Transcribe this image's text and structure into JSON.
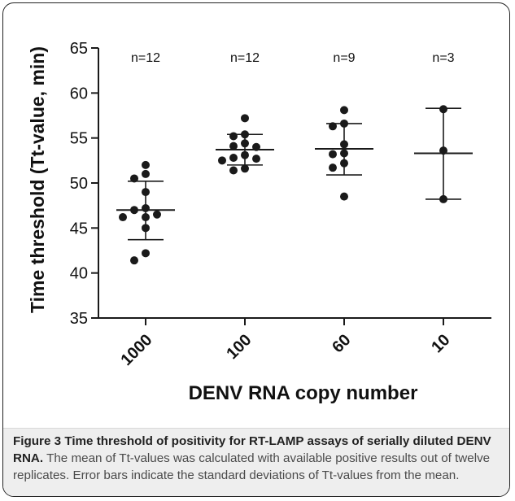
{
  "chart_data": {
    "type": "scatter",
    "title": "",
    "xlabel": "DENV RNA copy number",
    "ylabel": "Time threshold (Tt-value, min)",
    "ylim": [
      35,
      65
    ],
    "yticks": [
      35,
      40,
      45,
      50,
      55,
      60,
      65
    ],
    "categories": [
      "1000",
      "100",
      "60",
      "10"
    ],
    "annotations": [
      "n=12",
      "n=12",
      "n=9",
      "n=3"
    ],
    "groups": [
      {
        "category": "1000",
        "n_label": "n=12",
        "points": [
          52.0,
          51.0,
          50.5,
          49.0,
          47.2,
          47.0,
          46.5,
          46.2,
          46.2,
          45.0,
          42.2,
          41.4
        ],
        "mean": 47.0,
        "sd_low": 43.7,
        "sd_high": 50.2
      },
      {
        "category": "100",
        "n_label": "n=12",
        "points": [
          57.2,
          55.4,
          55.2,
          54.4,
          54.1,
          54.0,
          53.1,
          52.8,
          52.7,
          52.5,
          51.6,
          51.4
        ],
        "mean": 53.7,
        "sd_low": 52.0,
        "sd_high": 55.4
      },
      {
        "category": "60",
        "n_label": "n=9",
        "points": [
          58.1,
          56.6,
          56.3,
          54.3,
          53.3,
          53.2,
          52.2,
          51.7,
          48.5
        ],
        "mean": 53.8,
        "sd_low": 50.9,
        "sd_high": 56.6
      },
      {
        "category": "10",
        "n_label": "n=3",
        "points": [
          58.2,
          53.6,
          48.2
        ],
        "mean": 53.3,
        "sd_low": 48.2,
        "sd_high": 58.3
      }
    ],
    "grid": false,
    "legend": "none",
    "colors": {
      "points": "#1a1a1a",
      "lines": "#1a1a1a"
    }
  },
  "caption": {
    "figure_label": "Figure 3",
    "title": "Time threshold of positivity for RT-LAMP assays of serially diluted DENV RNA.",
    "body": "The mean of Tt-values was calculated with available positive results out of twelve replicates. Error bars indicate the standard deviations of Tt-values from the mean."
  }
}
